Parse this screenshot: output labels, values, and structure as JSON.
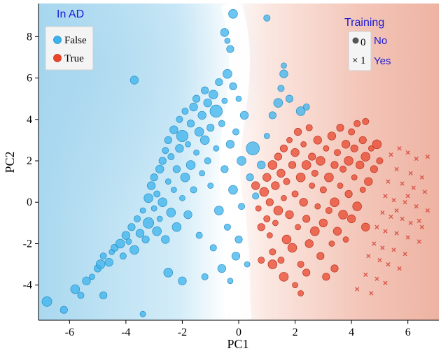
{
  "chart_data": {
    "type": "scatter",
    "xlabel": "PC1",
    "ylabel": "PC2",
    "xlim": [
      -7.1,
      7.1
    ],
    "ylim": [
      -5.7,
      9.6
    ],
    "x_ticks": [
      "-6",
      "-4",
      "-2",
      "0",
      "2",
      "4",
      "6"
    ],
    "y_ticks": [
      "-4",
      "-2",
      "0",
      "2",
      "4",
      "6",
      "8"
    ],
    "x_tick_values": [
      -6,
      -4,
      -2,
      0,
      2,
      4,
      6
    ],
    "y_tick_values": [
      -4,
      -2,
      0,
      2,
      4,
      6,
      8
    ],
    "grid": false,
    "background": "decision surface: blue (In AD False) left of boundary, red (In AD True) right of boundary",
    "legends": {
      "color": {
        "title": "In AD",
        "entries": [
          {
            "label": "False",
            "color": "#3bb3ec"
          },
          {
            "label": "True",
            "color": "#e8452c"
          }
        ],
        "placement": "top-left"
      },
      "shape": {
        "title": "Training",
        "entries": [
          {
            "symbol": "0",
            "label": "No",
            "marker": "circle"
          },
          {
            "symbol": "1",
            "label": "Yes",
            "marker": "x"
          }
        ],
        "placement": "top-right"
      }
    },
    "colors": {
      "false": "#3bb3ec",
      "true": "#e8452c",
      "yes_marker": "#d9574a",
      "legend_title": "#1a1ad8",
      "bg_blue": "#bfe3f4",
      "bg_red": "#f2c4b8"
    },
    "series": [
      {
        "name": "False",
        "marker": "circle",
        "points": [
          [
            -6.8,
            -4.8
          ],
          [
            -6.2,
            -5.2
          ],
          [
            -5.8,
            -4.2
          ],
          [
            -5.6,
            -4.5
          ],
          [
            -5.4,
            -3.8
          ],
          [
            -5.2,
            -3.6
          ],
          [
            -5.0,
            -3.2
          ],
          [
            -4.9,
            -3.0
          ],
          [
            -4.8,
            -2.6
          ],
          [
            -4.6,
            -2.9
          ],
          [
            -4.5,
            -2.4
          ],
          [
            -4.4,
            -2.2
          ],
          [
            -4.2,
            -2.0
          ],
          [
            -4.1,
            -2.6
          ],
          [
            -4.0,
            -1.6
          ],
          [
            -3.9,
            -1.9
          ],
          [
            -3.8,
            -1.2
          ],
          [
            -3.7,
            -2.3
          ],
          [
            -3.6,
            -0.8
          ],
          [
            -3.5,
            -1.5
          ],
          [
            -3.4,
            -0.4
          ],
          [
            -3.3,
            -1.8
          ],
          [
            -3.2,
            0.2
          ],
          [
            -3.2,
            -1.0
          ],
          [
            -3.1,
            0.8
          ],
          [
            -3.0,
            -0.3
          ],
          [
            -3.0,
            1.2
          ],
          [
            -2.9,
            -1.4
          ],
          [
            -2.9,
            0.4
          ],
          [
            -2.8,
            1.6
          ],
          [
            -2.8,
            -0.8
          ],
          [
            -2.7,
            2.0
          ],
          [
            -2.7,
            0.0
          ],
          [
            -2.6,
            2.5
          ],
          [
            -2.6,
            -1.8
          ],
          [
            -2.5,
            1.0
          ],
          [
            -2.5,
            3.0
          ],
          [
            -2.4,
            -0.5
          ],
          [
            -2.4,
            2.2
          ],
          [
            -2.3,
            3.5
          ],
          [
            -2.3,
            0.6
          ],
          [
            -2.2,
            1.6
          ],
          [
            -2.2,
            -1.2
          ],
          [
            -2.1,
            4.0
          ],
          [
            -2.1,
            2.6
          ],
          [
            -2.0,
            0.2
          ],
          [
            -2.0,
            3.2
          ],
          [
            -1.9,
            1.2
          ],
          [
            -1.9,
            4.4
          ],
          [
            -1.8,
            -0.6
          ],
          [
            -1.8,
            2.8
          ],
          [
            -1.7,
            3.8
          ],
          [
            -1.7,
            1.8
          ],
          [
            -1.6,
            0.6
          ],
          [
            -1.6,
            4.6
          ],
          [
            -1.5,
            2.4
          ],
          [
            -1.5,
            5.0
          ],
          [
            -1.4,
            3.4
          ],
          [
            -1.4,
            -1.6
          ],
          [
            -1.3,
            4.2
          ],
          [
            -1.3,
            1.4
          ],
          [
            -1.2,
            5.4
          ],
          [
            -1.2,
            3.0
          ],
          [
            -1.1,
            2.0
          ],
          [
            -1.1,
            4.8
          ],
          [
            -1.0,
            0.8
          ],
          [
            -1.0,
            3.6
          ],
          [
            -0.9,
            5.2
          ],
          [
            -0.9,
            -2.2
          ],
          [
            -0.8,
            4.4
          ],
          [
            -0.8,
            2.6
          ],
          [
            -0.7,
            5.8
          ],
          [
            -0.7,
            -0.4
          ],
          [
            -0.6,
            3.8
          ],
          [
            -0.6,
            -3.2
          ],
          [
            -0.5,
            4.9
          ],
          [
            -0.5,
            1.6
          ],
          [
            -0.4,
            6.2
          ],
          [
            -0.4,
            -1.2
          ],
          [
            -0.3,
            2.8
          ],
          [
            -0.3,
            -3.8
          ],
          [
            -0.2,
            5.6
          ],
          [
            -0.2,
            0.6
          ],
          [
            -0.1,
            3.4
          ],
          [
            -0.1,
            -2.6
          ],
          [
            0.0,
            5.0
          ],
          [
            0.0,
            -1.8
          ],
          [
            0.1,
            2.0
          ],
          [
            0.1,
            -0.2
          ],
          [
            0.2,
            4.2
          ],
          [
            0.3,
            -3.0
          ],
          [
            0.4,
            1.2
          ],
          [
            0.5,
            2.6
          ],
          [
            0.6,
            0.3
          ],
          [
            0.8,
            1.8
          ],
          [
            1.0,
            3.2
          ],
          [
            1.2,
            4.2
          ],
          [
            1.4,
            4.8
          ],
          [
            1.5,
            5.5
          ],
          [
            1.6,
            6.2
          ],
          [
            1.6,
            6.6
          ],
          [
            1.8,
            5.0
          ],
          [
            2.2,
            4.4
          ],
          [
            2.4,
            4.6
          ],
          [
            -0.5,
            8.2
          ],
          [
            -0.4,
            7.8
          ],
          [
            -0.3,
            7.4
          ],
          [
            -0.2,
            9.1
          ],
          [
            1.0,
            8.9
          ],
          [
            -3.7,
            5.9
          ],
          [
            -3.4,
            -5.4
          ],
          [
            -4.8,
            -4.5
          ],
          [
            -2.5,
            -3.4
          ],
          [
            -1.2,
            -3.6
          ],
          [
            -2.0,
            -3.8
          ]
        ]
      },
      {
        "name": "True",
        "marker": "circle",
        "points": [
          [
            0.7,
            -0.3
          ],
          [
            0.8,
            -1.2
          ],
          [
            0.9,
            0.5
          ],
          [
            1.0,
            -0.8
          ],
          [
            1.0,
            1.2
          ],
          [
            1.1,
            -1.6
          ],
          [
            1.1,
            0.0
          ],
          [
            1.2,
            1.8
          ],
          [
            1.2,
            -2.4
          ],
          [
            1.3,
            0.8
          ],
          [
            1.3,
            -1.0
          ],
          [
            1.4,
            2.2
          ],
          [
            1.4,
            -0.4
          ],
          [
            1.5,
            -2.8
          ],
          [
            1.5,
            1.4
          ],
          [
            1.6,
            0.2
          ],
          [
            1.6,
            2.6
          ],
          [
            1.7,
            -1.8
          ],
          [
            1.7,
            1.0
          ],
          [
            1.8,
            -0.6
          ],
          [
            1.8,
            3.0
          ],
          [
            1.9,
            1.8
          ],
          [
            1.9,
            -2.2
          ],
          [
            2.0,
            0.4
          ],
          [
            2.0,
            2.4
          ],
          [
            2.1,
            -1.2
          ],
          [
            2.1,
            3.4
          ],
          [
            2.2,
            1.2
          ],
          [
            2.2,
            -3.0
          ],
          [
            2.3,
            0.0
          ],
          [
            2.3,
            2.8
          ],
          [
            2.4,
            -0.8
          ],
          [
            2.4,
            1.8
          ],
          [
            2.5,
            3.6
          ],
          [
            2.5,
            -2.0
          ],
          [
            2.6,
            0.8
          ],
          [
            2.6,
            2.2
          ],
          [
            2.7,
            -1.4
          ],
          [
            2.7,
            1.4
          ],
          [
            2.8,
            3.0
          ],
          [
            2.8,
            -0.2
          ],
          [
            2.9,
            -2.6
          ],
          [
            2.9,
            2.0
          ],
          [
            3.0,
            0.6
          ],
          [
            3.0,
            -1.0
          ],
          [
            3.1,
            2.6
          ],
          [
            3.1,
            -3.6
          ],
          [
            3.2,
            1.2
          ],
          [
            3.2,
            -0.4
          ],
          [
            3.3,
            3.2
          ],
          [
            3.3,
            -2.0
          ],
          [
            3.4,
            1.8
          ],
          [
            3.4,
            0.0
          ],
          [
            3.5,
            2.4
          ],
          [
            3.5,
            -1.4
          ],
          [
            3.6,
            0.8
          ],
          [
            3.6,
            3.6
          ],
          [
            3.7,
            -0.6
          ],
          [
            3.7,
            1.6
          ],
          [
            3.8,
            2.8
          ],
          [
            3.8,
            -1.8
          ],
          [
            3.9,
            0.4
          ],
          [
            3.9,
            2.0
          ],
          [
            4.0,
            3.4
          ],
          [
            4.0,
            -0.8
          ],
          [
            4.1,
            1.2
          ],
          [
            4.1,
            2.6
          ],
          [
            4.2,
            -0.2
          ],
          [
            4.2,
            3.8
          ],
          [
            4.3,
            1.8
          ],
          [
            4.4,
            0.6
          ],
          [
            4.4,
            3.0
          ],
          [
            4.5,
            2.2
          ],
          [
            4.5,
            3.9
          ],
          [
            4.6,
            1.0
          ],
          [
            4.7,
            2.6
          ],
          [
            4.8,
            1.6
          ],
          [
            4.9,
            2.8
          ],
          [
            5.0,
            2.0
          ],
          [
            4.5,
            -1.2
          ],
          [
            2.0,
            -4.0
          ],
          [
            2.4,
            -3.4
          ],
          [
            1.6,
            -3.6
          ],
          [
            0.8,
            -2.8
          ],
          [
            0.6,
            0.8
          ],
          [
            2.2,
            -4.4
          ],
          [
            3.4,
            -3.2
          ],
          [
            1.2,
            -3.0
          ]
        ]
      },
      {
        "name": "Yes",
        "marker": "x",
        "points": [
          [
            5.4,
            2.3
          ],
          [
            5.7,
            2.6
          ],
          [
            6.0,
            2.4
          ],
          [
            6.3,
            2.1
          ],
          [
            6.7,
            2.2
          ],
          [
            5.6,
            1.6
          ],
          [
            6.1,
            1.4
          ],
          [
            6.5,
            1.2
          ],
          [
            5.3,
            1.0
          ],
          [
            5.8,
            0.9
          ],
          [
            6.2,
            0.7
          ],
          [
            6.6,
            0.5
          ],
          [
            5.2,
            0.3
          ],
          [
            5.5,
            0.1
          ],
          [
            5.9,
            0.0
          ],
          [
            6.3,
            -0.2
          ],
          [
            6.7,
            -0.4
          ],
          [
            5.1,
            -0.5
          ],
          [
            5.4,
            -0.7
          ],
          [
            5.8,
            -0.8
          ],
          [
            6.1,
            -1.0
          ],
          [
            6.5,
            -1.2
          ],
          [
            4.9,
            -1.2
          ],
          [
            5.2,
            -1.4
          ],
          [
            5.6,
            -1.5
          ],
          [
            6.0,
            -1.7
          ],
          [
            6.4,
            -1.9
          ],
          [
            4.8,
            -2.0
          ],
          [
            5.1,
            -2.2
          ],
          [
            5.5,
            -2.3
          ],
          [
            5.9,
            -2.5
          ],
          [
            4.6,
            -2.6
          ],
          [
            5.0,
            -2.8
          ],
          [
            5.3,
            -3.0
          ],
          [
            5.7,
            -3.2
          ],
          [
            4.5,
            -3.5
          ],
          [
            4.9,
            -3.7
          ],
          [
            5.2,
            -3.9
          ],
          [
            4.2,
            -4.2
          ],
          [
            4.7,
            -4.4
          ],
          [
            6.0,
            0.3
          ],
          [
            6.4,
            -0.9
          ],
          [
            5.6,
            -0.4
          ]
        ]
      }
    ]
  }
}
